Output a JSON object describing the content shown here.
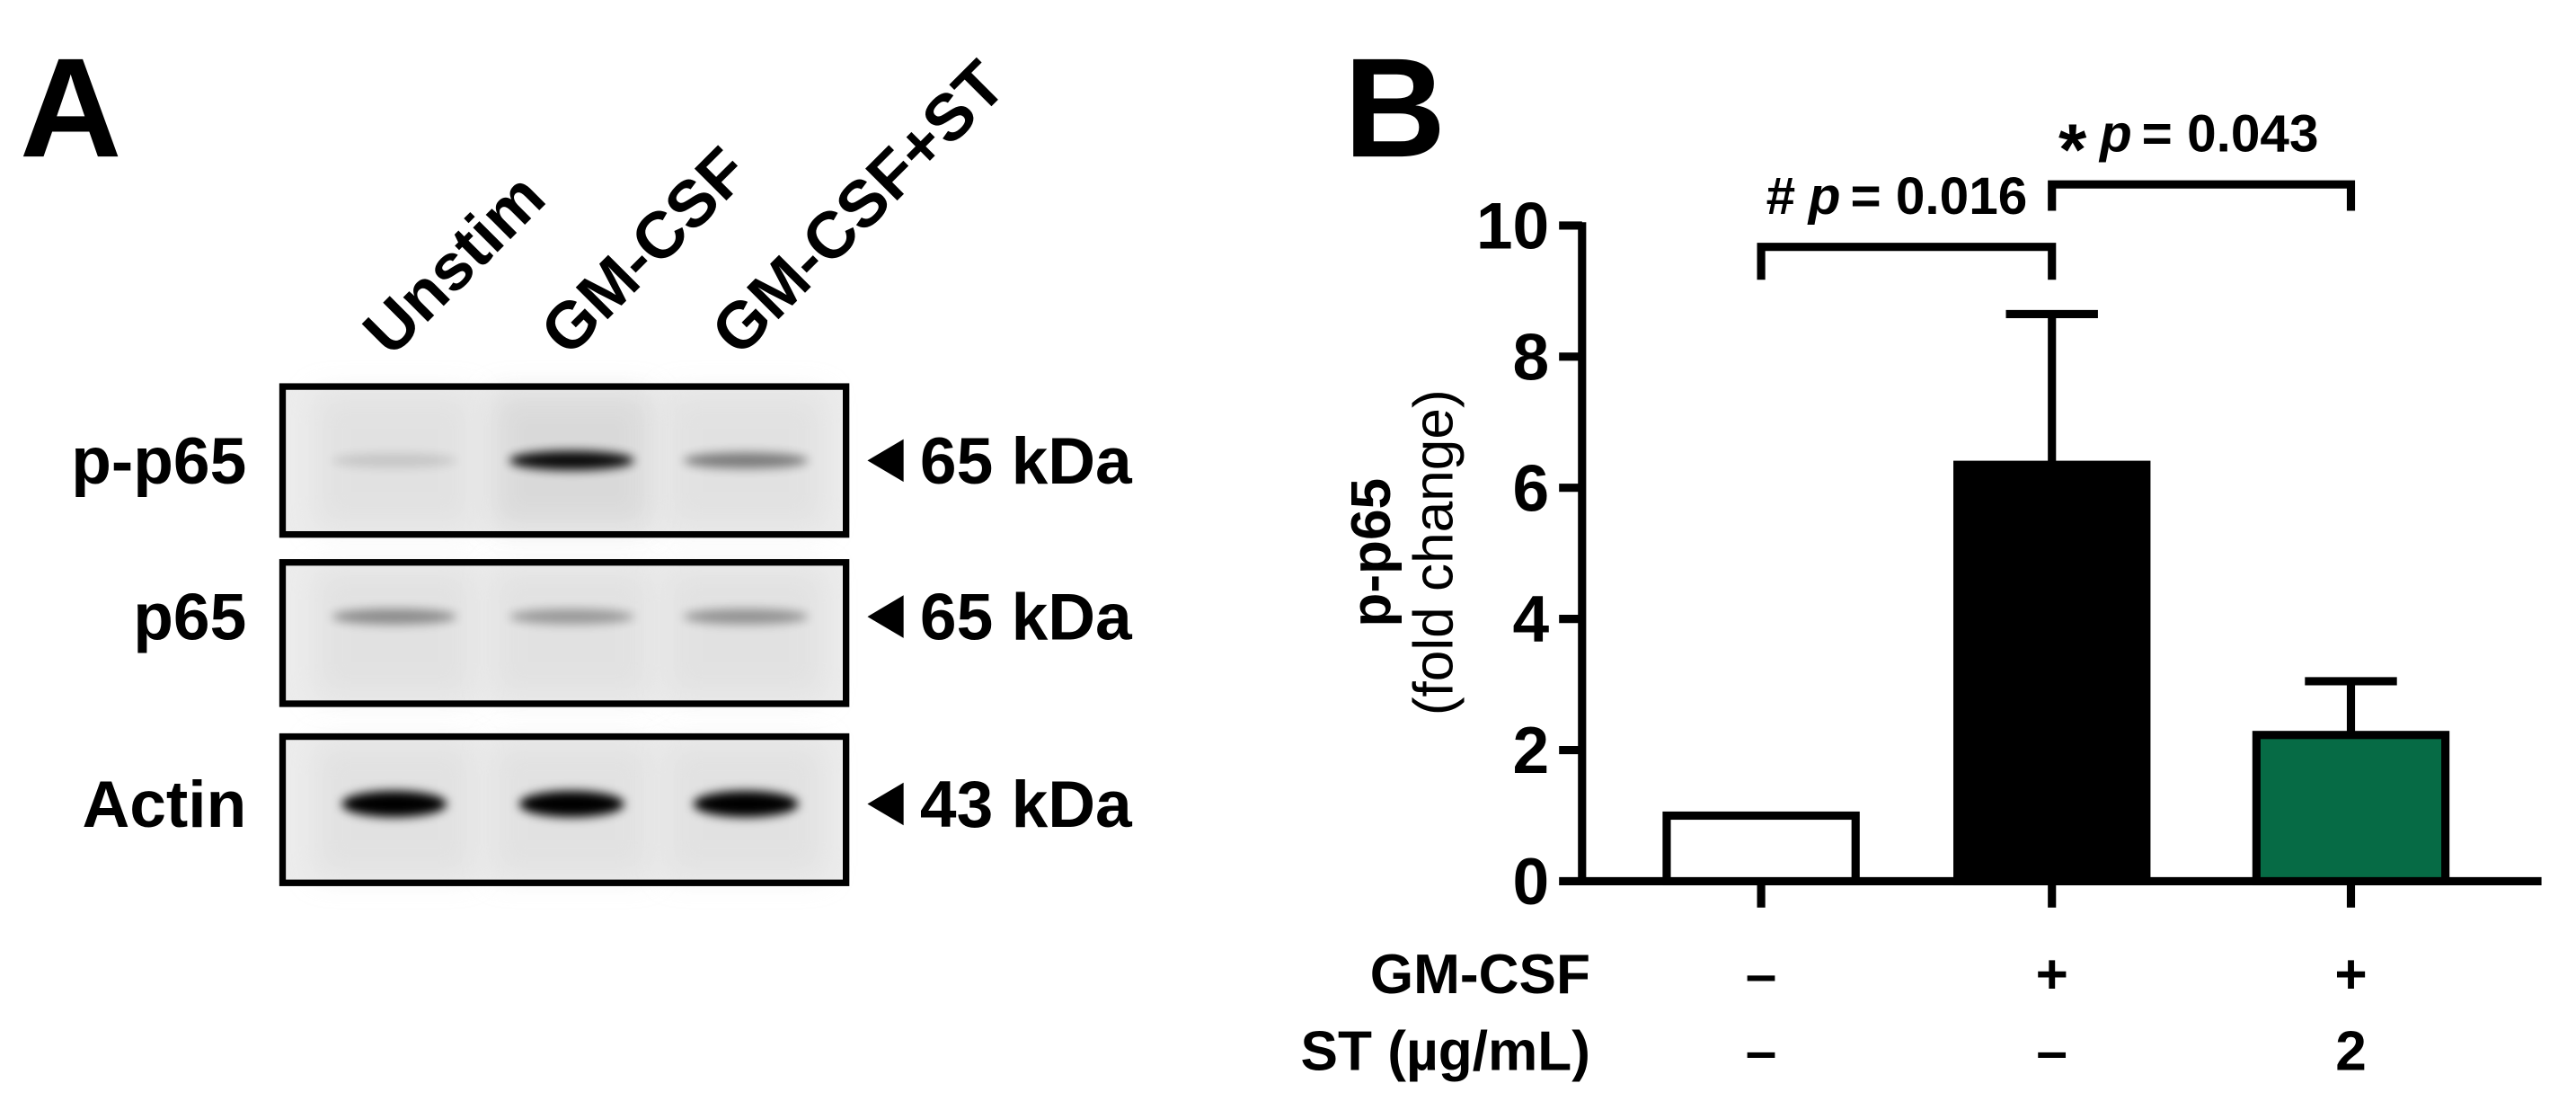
{
  "panel_a": {
    "label": "A",
    "lanes": [
      "Unstim",
      "GM-CSF",
      "GM-CSF+ST"
    ],
    "blots": [
      {
        "name": "p-p65",
        "size": "65 kDa"
      },
      {
        "name": "p65",
        "size": "65 kDa"
      },
      {
        "name": "Actin",
        "size": "43 kDa"
      }
    ],
    "marker_icon": "left-triangle-icon"
  },
  "chart_data": {
    "panel_label": "B",
    "type": "bar",
    "categories": [
      "Unstim",
      "GM-CSF",
      "GM-CSF+ST"
    ],
    "values": [
      1.0,
      6.35,
      2.23
    ],
    "error_upper": [
      null,
      8.65,
      3.05
    ],
    "bar_colors": [
      "#ffffff",
      "#000000",
      "#066b45"
    ],
    "ylabel_line1": "p-p65",
    "ylabel_line2": "(fold change)",
    "ylim": [
      0,
      10
    ],
    "yticks": [
      "0",
      "2",
      "4",
      "6",
      "8",
      "10"
    ],
    "grid": false,
    "condition_rows": [
      {
        "label": "GM-CSF",
        "values": [
          "–",
          "+",
          "+"
        ]
      },
      {
        "label": "ST (µg/mL)",
        "values": [
          "–",
          "–",
          "2"
        ]
      }
    ],
    "annotations": [
      {
        "from": 0,
        "to": 1,
        "symbol": "#",
        "p_label": "p",
        "text": "= 0.016"
      },
      {
        "from": 1,
        "to": 2,
        "symbol": "*",
        "p_label": "p",
        "text": "= 0.043"
      }
    ]
  }
}
